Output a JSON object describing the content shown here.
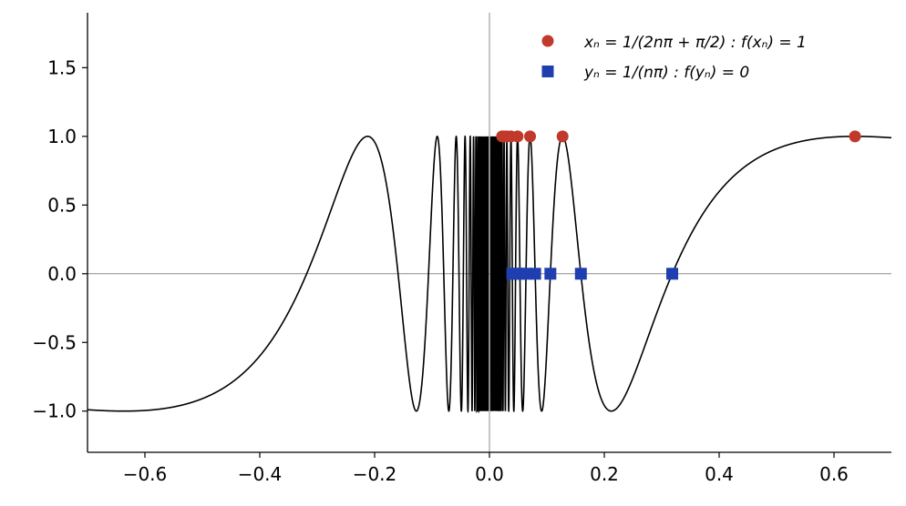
{
  "chart_data": {
    "type": "line",
    "title": "",
    "xlabel": "",
    "ylabel": "",
    "xlim": [
      -0.7,
      0.7
    ],
    "ylim": [
      -1.3,
      1.9
    ],
    "xticks": [
      -0.6,
      -0.4,
      -0.2,
      0.0,
      0.2,
      0.4,
      0.6
    ],
    "xtick_labels": [
      "−0.6",
      "−0.4",
      "−0.2",
      "0.0",
      "0.2",
      "0.4",
      "0.6"
    ],
    "yticks": [
      -1.0,
      -0.5,
      0.0,
      0.5,
      1.0,
      1.5
    ],
    "ytick_labels": [
      "−1.0",
      "−0.5",
      "0.0",
      "0.5",
      "1.0",
      "1.5"
    ],
    "grid": false,
    "legend_position": "top-right",
    "reference_lines": [
      {
        "orientation": "horizontal",
        "value": 0.0,
        "color": "#8c8c8c"
      },
      {
        "orientation": "vertical",
        "value": 0.0,
        "color": "#8c8c8c"
      }
    ],
    "function_curve": {
      "expression": "sin(1/x)",
      "color": "#000000"
    },
    "series": [
      {
        "name": "x_n = 1/(2nπ + π/2) : f(x_n) = 1",
        "marker": "circle",
        "color": "#c0392b",
        "x": [
          0.6366,
          0.1273,
          0.0707,
          0.049,
          0.0374,
          0.0303,
          0.0255,
          0.022
        ],
        "y": [
          1,
          1,
          1,
          1,
          1,
          1,
          1,
          1
        ]
      },
      {
        "name": "y_n = 1/(nπ) : f(y_n) = 0",
        "marker": "square",
        "color": "#1f3fb0",
        "x": [
          0.3183,
          0.1592,
          0.1061,
          0.0796,
          0.0637,
          0.0531,
          0.0455,
          0.0398
        ],
        "y": [
          0,
          0,
          0,
          0,
          0,
          0,
          0,
          0
        ]
      }
    ]
  },
  "legend": {
    "entries": [
      {
        "label": "xₙ = 1/(2nπ + π/2) : f(xₙ) = 1"
      },
      {
        "label": "yₙ = 1/(nπ) : f(yₙ) = 0"
      }
    ]
  }
}
